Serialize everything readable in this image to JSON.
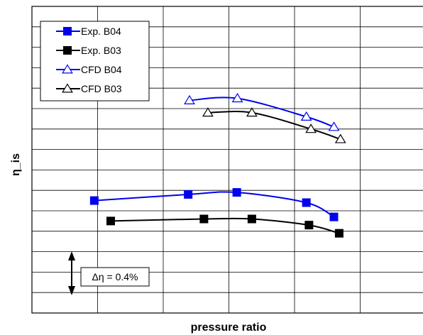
{
  "chart_data": {
    "type": "line",
    "title": "",
    "xlabel": "pressure ratio",
    "ylabel": "η_is",
    "xlim": [
      0,
      6
    ],
    "ylim": [
      0,
      15
    ],
    "grid": true,
    "legend_position": "top-left",
    "series": [
      {
        "name": "Exp. B04",
        "color": "#0000ee",
        "marker": "square-filled",
        "x": [
          0.95,
          2.38,
          3.12,
          4.18,
          4.6
        ],
        "y": [
          5.5,
          5.8,
          5.9,
          5.4,
          4.7
        ]
      },
      {
        "name": "Exp. B03",
        "color": "#000000",
        "marker": "square-filled",
        "x": [
          1.2,
          2.62,
          3.35,
          4.22,
          4.68
        ],
        "y": [
          4.5,
          4.6,
          4.6,
          4.3,
          3.9
        ]
      },
      {
        "name": "CFD B04",
        "color": "#0000ee",
        "marker": "triangle-open",
        "x": [
          2.4,
          3.13,
          4.18,
          4.6
        ],
        "y": [
          10.4,
          10.5,
          9.6,
          9.1
        ]
      },
      {
        "name": "CFD B03",
        "color": "#000000",
        "marker": "triangle-open",
        "x": [
          2.68,
          3.35,
          4.25,
          4.7
        ],
        "y": [
          9.8,
          9.8,
          9.0,
          8.5
        ]
      }
    ],
    "annotations": [
      {
        "text": "Δη = 0.4%",
        "x": 0.8,
        "y": 1.5
      }
    ]
  }
}
